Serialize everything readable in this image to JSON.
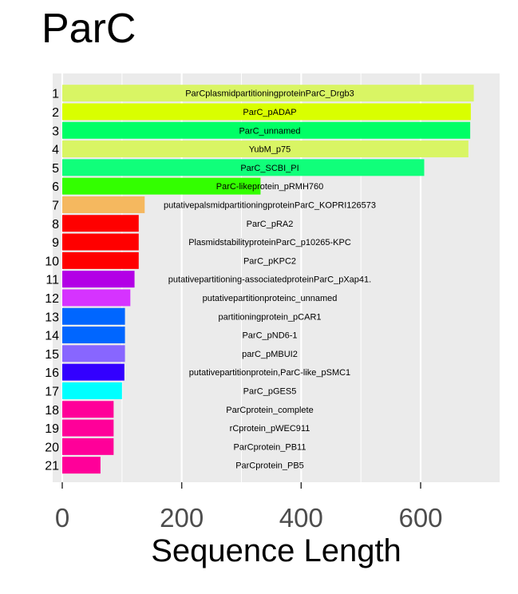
{
  "chart_data": {
    "type": "bar",
    "orientation": "horizontal",
    "title": "ParC",
    "xlabel": "Sequence Length",
    "ylabel": "",
    "xlim": [
      -15,
      715
    ],
    "xticks": [
      0,
      200,
      400,
      600
    ],
    "grid": true,
    "legend": "none",
    "bars": [
      {
        "rank": "1",
        "label": "ParCplasmidpartitioningproteinParC_Drgb3",
        "value": 689,
        "color": "#d9f564"
      },
      {
        "rank": "2",
        "label": "ParC_pADAP",
        "value": 684,
        "color": "#d9ff00"
      },
      {
        "rank": "3",
        "label": "ParC_unnamed",
        "value": 683,
        "color": "#00ff66"
      },
      {
        "rank": "4",
        "label": "YubM_p75",
        "value": 680,
        "color": "#d9f564"
      },
      {
        "rank": "5",
        "label": "ParC_SCBI_PI",
        "value": 606,
        "color": "#10ff7a"
      },
      {
        "rank": "6",
        "label": "ParC-likeprotein_pRMH760",
        "value": 332,
        "color": "#33ff00"
      },
      {
        "rank": "7",
        "label": "putativepalsmidpartitioningproteinParC_KOPRI126573",
        "value": 138,
        "color": "#f5b85f"
      },
      {
        "rank": "8",
        "label": "ParC_pRA2",
        "value": 128,
        "color": "#ff0000"
      },
      {
        "rank": "9",
        "label": "PlasmidstabilityproteinParC_p10265-KPC",
        "value": 128,
        "color": "#ff0000"
      },
      {
        "rank": "10",
        "label": "ParC_pKPC2",
        "value": 128,
        "color": "#ff0000"
      },
      {
        "rank": "11",
        "label": "putativepartitioning-associatedproteinParC_pXap41.",
        "value": 121,
        "color": "#b300e6"
      },
      {
        "rank": "12",
        "label": "putativepartitionproteinc_unnamed",
        "value": 114,
        "color": "#d633ff"
      },
      {
        "rank": "13",
        "label": "partitioningprotein_pCAR1",
        "value": 105,
        "color": "#0066ff"
      },
      {
        "rank": "14",
        "label": "ParC_pND6-1",
        "value": 105,
        "color": "#0066ff"
      },
      {
        "rank": "15",
        "label": "parC_pMBUI2",
        "value": 105,
        "color": "#8866ff"
      },
      {
        "rank": "16",
        "label": "putativepartitionprotein,ParC-like_pSMC1",
        "value": 104,
        "color": "#3300ff"
      },
      {
        "rank": "17",
        "label": "ParC_pGES5",
        "value": 100,
        "color": "#00ffff"
      },
      {
        "rank": "18",
        "label": "ParCprotein_complete",
        "value": 86,
        "color": "#ff0099"
      },
      {
        "rank": "19",
        "label": "rCprotein_pWEC911",
        "value": 86,
        "color": "#ff0099"
      },
      {
        "rank": "20",
        "label": "ParCprotein_PB11",
        "value": 86,
        "color": "#ff0099"
      },
      {
        "rank": "21",
        "label": "ParCprotein_PB5",
        "value": 64,
        "color": "#ff0099"
      }
    ]
  }
}
